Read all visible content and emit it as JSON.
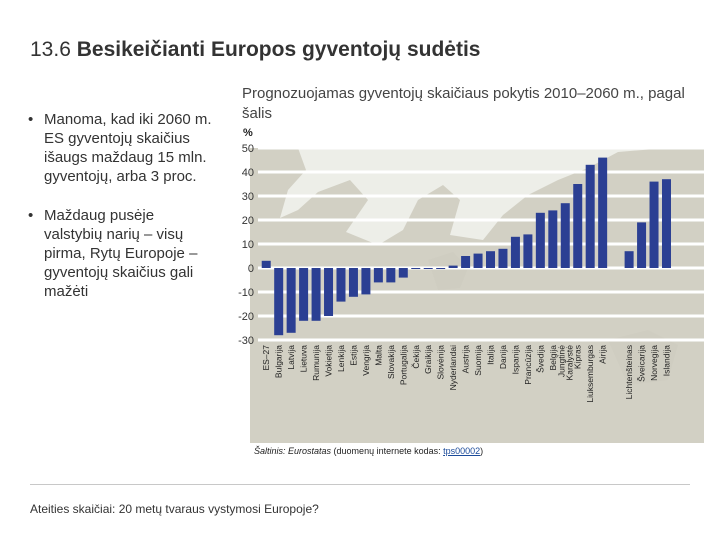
{
  "slide": {
    "title_prefix": "13.6 ",
    "title_bold": "Besikeičianti Europos gyventojų sudėtis",
    "bullets": [
      "Manoma, kad iki 2060 m. ES gyventojų skaičius išaugs maždaug 15 mln. gyventojų, arba 3 proc.",
      "Maždaug pusėje valstybių narių – visų pirma, Rytų Europoje – gyventojų skaičius gali mažėti"
    ],
    "footer": "Ateities skaičiai: 20 metų tvaraus vystymosi Europoje?"
  },
  "source": {
    "prefix": "Šaltinis: ",
    "org": "Eurostatas",
    "middle": " (duomenų internete kodas: ",
    "code": "tps00002",
    "suffix": ")"
  },
  "chart_data": {
    "type": "bar",
    "title": "Prognozuojamas gyventojų skaičiaus pokytis 2010–2060 m., pagal šalis",
    "ylabel": "%",
    "ylim": [
      -30,
      50
    ],
    "yticks": [
      50,
      40,
      30,
      20,
      10,
      0,
      -10,
      -20,
      -30
    ],
    "categories": [
      "ES–27",
      "Bulgarija",
      "Latvija",
      "Lietuva",
      "Rumunija",
      "Vokietija",
      "Lenkija",
      "Estija",
      "Vengrija",
      "Malta",
      "Slovakija",
      "Portugalija",
      "Čekija",
      "Graikija",
      "Slovėnija",
      "Nyderlandai",
      "Austrija",
      "Suomija",
      "Italija",
      "Danija",
      "Ispanija",
      "Prancūzija",
      "Švedija",
      "Belgija",
      "Jungtinė Karalystė",
      "Kipras",
      "Liuksemburgas",
      "Airija",
      "Lichtenšteinas",
      "Šveicarija",
      "Norvegija",
      "Islandija"
    ],
    "values": [
      3,
      -28,
      -27,
      -22,
      -22,
      -20,
      -14,
      -12,
      -11,
      -6,
      -6,
      -4,
      0,
      0,
      0,
      1,
      5,
      6,
      7,
      8,
      13,
      14,
      23,
      24,
      27,
      35,
      43,
      46,
      7,
      19,
      36,
      37
    ],
    "colors": {
      "bar": "#2b3f93",
      "band": "#ffffff",
      "map_land": "#d2d0c4",
      "map_sea": "#edeee8"
    }
  }
}
